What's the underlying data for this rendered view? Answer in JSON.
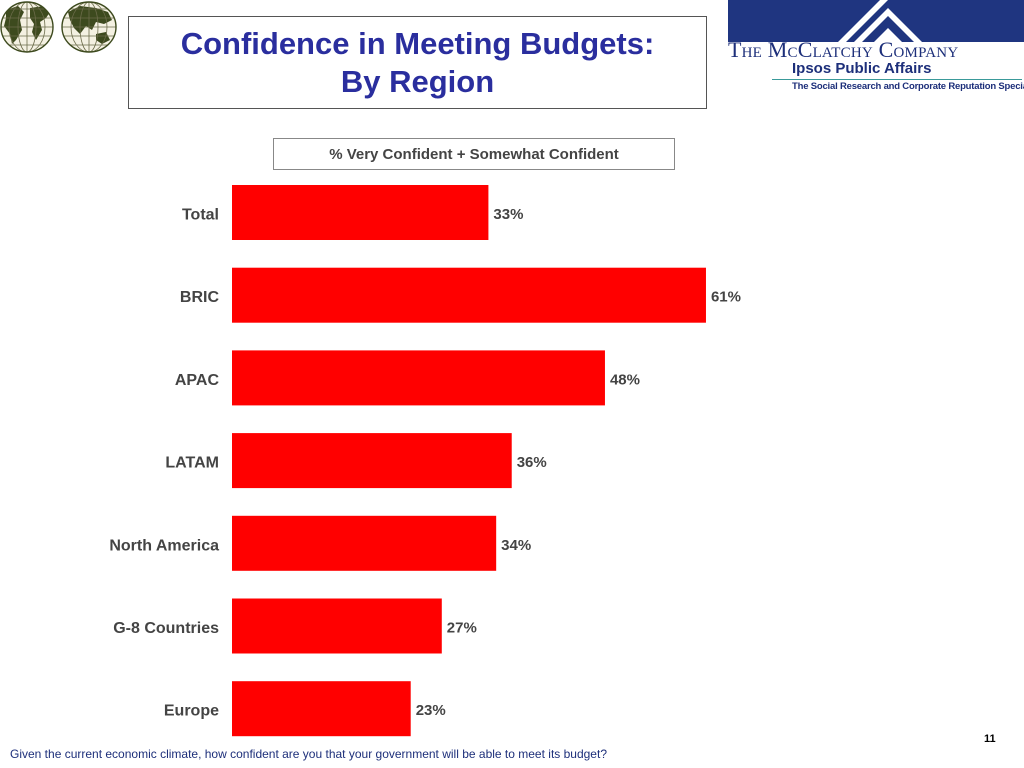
{
  "title": {
    "line1": "Confidence in Meeting Budgets:",
    "line2": "By Region"
  },
  "branding": {
    "company": "The McClatchy Company",
    "division": "Ipsos Public Affairs",
    "tagline": "The Social Research and Corporate Reputation Specialists"
  },
  "colors": {
    "title": "#2a2e9e",
    "bar": "#ff0000",
    "label": "#444444"
  },
  "chart_data": {
    "type": "bar",
    "orientation": "horizontal",
    "subtitle": "% Very Confident + Somewhat Confident",
    "categories": [
      "Total",
      "BRIC",
      "APAC",
      "LATAM",
      "North America",
      "G-8 Countries",
      "Europe"
    ],
    "values": [
      33,
      61,
      48,
      36,
      34,
      27,
      23
    ],
    "value_labels": [
      "33%",
      "61%",
      "48%",
      "36%",
      "34%",
      "27%",
      "23%"
    ],
    "xlim": [
      0,
      100
    ],
    "grid": false,
    "unit": "%"
  },
  "footer": {
    "page_number": "11",
    "question": "Given the current economic climate, how confident are you that your government will be able to meet its budget?"
  }
}
